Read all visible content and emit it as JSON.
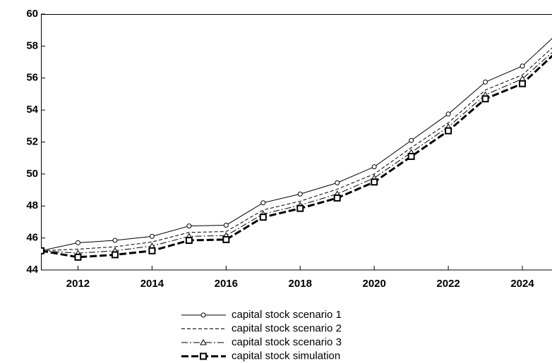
{
  "chart_data": {
    "type": "line",
    "x": [
      2011,
      2012,
      2013,
      2014,
      2015,
      2016,
      2017,
      2018,
      2019,
      2020,
      2021,
      2022,
      2023,
      2024,
      2025
    ],
    "series": [
      {
        "name": "capital stock scenario 1",
        "color": "#000000",
        "dash": "none",
        "marker": "circle",
        "width": 1,
        "values": [
          45.2,
          45.7,
          45.85,
          46.1,
          46.75,
          46.8,
          48.2,
          48.75,
          49.45,
          50.45,
          52.1,
          53.75,
          55.75,
          56.75,
          58.9
        ]
      },
      {
        "name": "capital stock scenario 2",
        "color": "#000000",
        "dash": "5,3",
        "marker": "none",
        "width": 1,
        "values": [
          45.2,
          45.3,
          45.45,
          45.75,
          46.35,
          46.4,
          47.75,
          48.3,
          49.05,
          50.0,
          51.65,
          53.2,
          55.25,
          56.2,
          58.3
        ]
      },
      {
        "name": "capital stock scenario 3",
        "color": "#000000",
        "dash": "9,3,2,3",
        "marker": "triangle",
        "width": 1,
        "values": [
          45.2,
          45.05,
          45.2,
          45.5,
          46.1,
          46.15,
          47.5,
          48.05,
          48.75,
          49.75,
          51.35,
          52.95,
          54.95,
          55.95,
          58.0
        ]
      },
      {
        "name": "capital stock simulation",
        "color": "#000000",
        "dash": "10,4",
        "marker": "square",
        "width": 3,
        "values": [
          45.2,
          44.8,
          44.95,
          45.2,
          45.85,
          45.9,
          47.3,
          47.85,
          48.5,
          49.5,
          51.1,
          52.7,
          54.7,
          55.65,
          57.8
        ]
      }
    ],
    "xlim": [
      2011,
      2024.8
    ],
    "xticks": [
      2012,
      2014,
      2016,
      2018,
      2020,
      2022,
      2024
    ],
    "ylim": [
      44,
      60
    ],
    "yticks": [
      44,
      46,
      48,
      50,
      52,
      54,
      56,
      58,
      60
    ],
    "grid": false,
    "legend": "bottom"
  }
}
